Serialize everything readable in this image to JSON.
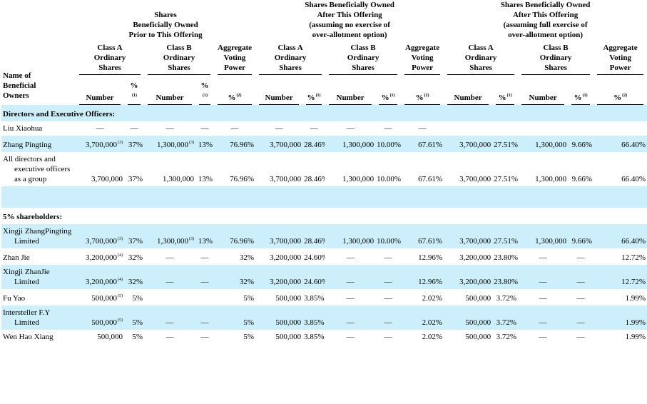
{
  "header": {
    "owner_label": [
      "Name of",
      "Beneficial",
      "Owners"
    ],
    "groups": [
      {
        "title": [
          "Shares",
          "Beneficially Owned",
          "Prior to This Offering"
        ],
        "columns": [
          {
            "label": [
              "Class A",
              "Ordinary",
              "Shares"
            ],
            "subheaders": [
              {
                "text": "Number"
              },
              {
                "text": "%",
                "note": "(1)"
              }
            ]
          },
          {
            "label": [
              "Class B",
              "Ordinary",
              "Shares"
            ],
            "subheaders": [
              {
                "text": "Number"
              },
              {
                "text": "%",
                "note": "(1)"
              }
            ]
          },
          {
            "label": [
              "Aggregate",
              "Voting",
              "Power"
            ],
            "subheaders": [
              {
                "text": "%",
                "note": "(2)"
              }
            ]
          }
        ]
      },
      {
        "title": [
          "Shares Beneficially Owned",
          "After This Offering",
          "(assuming no exercise of",
          "over-allotment option)"
        ],
        "columns": [
          {
            "label": [
              "Class A",
              "Ordinary",
              "Shares"
            ],
            "subheaders": [
              {
                "text": "Number"
              },
              {
                "text": "%",
                "note": "(1)"
              }
            ]
          },
          {
            "label": [
              "Class B",
              "Ordinary",
              "Shares"
            ],
            "subheaders": [
              {
                "text": "Number"
              },
              {
                "text": "%",
                "note": "(1)"
              }
            ]
          },
          {
            "label": [
              "Aggregate",
              "Voting",
              "Power"
            ],
            "subheaders": [
              {
                "text": "%",
                "note": "(2)"
              }
            ]
          }
        ]
      },
      {
        "title": [
          "Shares Beneficially Owned",
          "After This Offering",
          "(assuming full exercise of",
          "over-allotment option)"
        ],
        "columns": [
          {
            "label": [
              "Class A",
              "Ordinary",
              "Shares"
            ],
            "subheaders": [
              {
                "text": "Number"
              },
              {
                "text": "%",
                "note": "(1)"
              }
            ]
          },
          {
            "label": [
              "Class B",
              "Ordinary",
              "Shares"
            ],
            "subheaders": [
              {
                "text": "Number"
              },
              {
                "text": "%",
                "note": "(1)"
              }
            ]
          },
          {
            "label": [
              "Aggregate",
              "Voting",
              "Power"
            ],
            "subheaders": [
              {
                "text": "%",
                "note": "(2)"
              }
            ]
          }
        ]
      }
    ]
  },
  "rows": [
    {
      "name": "Directors and Executive Officers:",
      "section": true
    },
    {
      "name": "Liu Xiaohua",
      "cells": [
        "—",
        "—",
        "—",
        "—",
        "—",
        "—",
        "—",
        "—",
        "—",
        "—",
        null,
        null,
        null,
        null,
        null
      ]
    },
    {
      "name": "Zhang Pingting",
      "cells": [
        {
          "text": "3,700,000",
          "note": "(3)"
        },
        "37%",
        {
          "text": "1,300,000",
          "note": "(3)"
        },
        "13%",
        "76.96%",
        "3,700,000",
        "28.46%",
        "1,300,000",
        "10.00%",
        "67.61%",
        "3,700,000",
        "27.51%",
        "1,300,000",
        "9.66%",
        "66.40%"
      ]
    },
    {
      "name": "All directors and executive officers as a group",
      "cells": [
        "3,700,000",
        "37%",
        "1,300,000",
        "13%",
        "76.96%",
        "3,700,000",
        "28.46%",
        "1,300,000",
        "10.00%",
        "67.61%",
        "3,700,000",
        "27.51%",
        "1,300,000",
        "9.66%",
        "66.40%"
      ]
    },
    {
      "blank": true
    },
    {
      "name": "5% shareholders:",
      "section": true
    },
    {
      "name": "Xingji ZhangPingting Limited",
      "cells": [
        {
          "text": "3,700,000",
          "note": "(3)"
        },
        "37%",
        {
          "text": "1,300,000",
          "note": "(3)"
        },
        "13%",
        "76.96%",
        "3,700,000",
        "28.46%",
        "1,300,000",
        "10.00%",
        "67.61%",
        "3,700,000",
        "27.51%",
        "1,300,000",
        "9.66%",
        "66.40%"
      ]
    },
    {
      "name": "Zhan Jie",
      "cells": [
        {
          "text": "3,200,000",
          "note": "(4)"
        },
        "32%",
        "—",
        "—",
        "32%",
        "3,200,000",
        "24.60%",
        "—",
        "—",
        "12.96%",
        "3,200,000",
        "23.80%",
        "—",
        "—",
        "12.72%"
      ]
    },
    {
      "name": "Xingji ZhanJie Limited",
      "cells": [
        {
          "text": "3,200,000",
          "note": "(4)"
        },
        "32%",
        "—",
        "—",
        "32%",
        "3,200,000",
        "24.60%",
        "—",
        "—",
        "12.96%",
        "3,200,000",
        "23.80%",
        "—",
        "—",
        "12.72%"
      ]
    },
    {
      "name": "Fu Yao",
      "cells": [
        {
          "text": "500,000",
          "note": "(5)"
        },
        "5%",
        null,
        null,
        "5%",
        "500,000",
        "3.85%",
        "—",
        "—",
        "2.02%",
        "500,000",
        "3.72%",
        "—",
        "—",
        "1.99%"
      ]
    },
    {
      "name": "Intersteller F.Y Limited",
      "cells": [
        {
          "text": "500,000",
          "note": "(5)"
        },
        "5%",
        "—",
        "—",
        "5%",
        "500,000",
        "3.85%",
        "—",
        "—",
        "2.02%",
        "500,000",
        "3.72%",
        "—",
        "—",
        "1.99%"
      ]
    },
    {
      "name": "Wen Hao Xiang",
      "cells": [
        "500,000",
        "5%",
        "—",
        "—",
        "5%",
        "500,000",
        "3.85%",
        "—",
        "—",
        "2.02%",
        "500,000",
        "3.72%",
        "—",
        "—",
        "1.99%"
      ]
    }
  ]
}
